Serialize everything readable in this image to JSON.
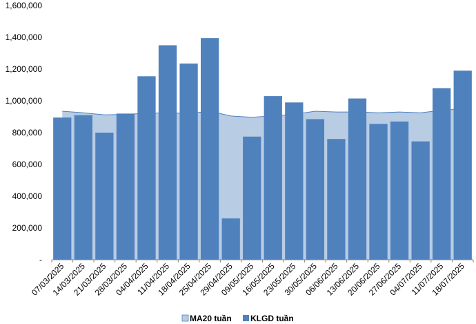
{
  "chart_data": {
    "type": "bar",
    "categories": [
      "07/03/2025",
      "14/03/2025",
      "21/03/2025",
      "28/03/2025",
      "04/04/2025",
      "11/04/2025",
      "18/04/2025",
      "25/04/2025",
      "29/04/2025",
      "09/05/2025",
      "16/05/2025",
      "23/05/2025",
      "30/05/2025",
      "06/06/2025",
      "13/06/2025",
      "20/06/2025",
      "27/06/2025",
      "04/07/2025",
      "11/07/2025",
      "18/07/2025"
    ],
    "y_ticks": [
      "-",
      "200,000",
      "400,000",
      "600,000",
      "800,000",
      "1,000,000",
      "1,200,000",
      "1,400,000",
      "1,600,000"
    ],
    "ylim": [
      0,
      1600000
    ],
    "series": [
      {
        "name": "MA20 tuần",
        "type": "area",
        "color": "#b8cce4",
        "line_color": "#4f81bd",
        "values": [
          935000,
          925000,
          912000,
          915000,
          922000,
          925000,
          920000,
          935000,
          905000,
          897000,
          905000,
          915000,
          935000,
          930000,
          930000,
          925000,
          930000,
          925000,
          940000,
          950000
        ]
      },
      {
        "name": "KLGD tuần",
        "type": "bar",
        "color": "#4f81bd",
        "values": [
          895000,
          910000,
          800000,
          920000,
          1155000,
          1350000,
          1235000,
          1395000,
          260000,
          775000,
          1030000,
          990000,
          885000,
          760000,
          1015000,
          855000,
          870000,
          745000,
          1080000,
          1190000
        ]
      }
    ],
    "legend_position": "bottom"
  }
}
